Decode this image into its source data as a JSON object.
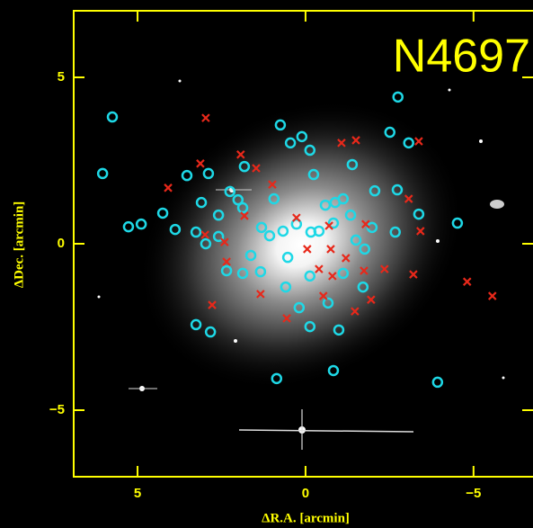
{
  "chart_data": {
    "type": "scatter",
    "title": "N4697",
    "x_label": "ΔR.A. [arcmin]",
    "y_label": "ΔDec. [arcmin]",
    "xlim": [
      6.9,
      -6.77
    ],
    "ylim": [
      -7,
      7
    ],
    "xticks": [
      5,
      0,
      {
        "value": -5,
        "label": "−5"
      }
    ],
    "yticks": [
      {
        "value": -5,
        "label": "−5"
      },
      0,
      5
    ],
    "axis_color": "#ffff00",
    "series": [
      {
        "color": "#1ed8e6",
        "marker": "circle",
        "x": [
          5.75,
          6.04,
          5.27,
          4.89,
          4.25,
          3.88,
          3.53,
          3.26,
          2.97,
          2.59,
          2.59,
          2.35,
          2.25,
          2.01,
          1.82,
          1.87,
          1.63,
          1.34,
          1.31,
          1.07,
          0.94,
          0.75,
          0.45,
          0.53,
          0.59,
          0.19,
          0.11,
          -0.13,
          -0.24,
          -0.16,
          -0.4,
          -0.59,
          -0.67,
          -0.83,
          -0.88,
          -1.12,
          -1.39,
          -1.5,
          -1.71,
          -1.76,
          -2.06,
          -2.51,
          -2.75,
          -3.07,
          -2.67,
          -2.73,
          -3.37,
          -4.52,
          -3.93,
          -0.83,
          0.86,
          3.26,
          2.83,
          -0.99,
          -0.13,
          0.67,
          0.27,
          -0.13,
          -1.34,
          1.87,
          3.1,
          2.89,
          -1.98,
          -1.12
        ],
        "y": [
          3.81,
          2.11,
          0.51,
          0.59,
          0.92,
          0.43,
          2.05,
          0.35,
          0.0,
          0.22,
          0.86,
          -0.81,
          1.57,
          1.32,
          2.32,
          -0.89,
          -0.35,
          -0.84,
          0.49,
          0.24,
          1.35,
          3.57,
          3.03,
          -0.41,
          -1.3,
          -1.92,
          3.22,
          2.81,
          2.08,
          0.35,
          0.38,
          1.16,
          -1.78,
          0.62,
          1.24,
          -0.89,
          2.38,
          0.11,
          -1.3,
          -0.16,
          1.59,
          3.35,
          4.41,
          3.03,
          0.35,
          1.62,
          0.89,
          0.62,
          -4.16,
          -3.81,
          -4.05,
          -2.43,
          -2.65,
          -2.59,
          -2.49,
          0.38,
          0.59,
          -0.97,
          0.86,
          1.08,
          1.24,
          2.11,
          0.49,
          1.35
        ]
      },
      {
        "color": "#e8281a",
        "marker": "x",
        "x": [
          2.97,
          1.47,
          1.93,
          3.13,
          4.09,
          1.82,
          0.99,
          0.27,
          -0.7,
          -1.07,
          -1.5,
          -3.37,
          -3.07,
          -3.42,
          -1.79,
          -1.2,
          -0.75,
          -0.05,
          -0.4,
          -0.8,
          -1.74,
          -2.35,
          -3.21,
          -4.81,
          -5.56,
          2.78,
          0.56,
          1.34,
          2.35,
          2.99,
          -1.47,
          -0.53,
          -1.95,
          2.41
        ],
        "y": [
          3.78,
          2.27,
          2.68,
          2.41,
          1.68,
          0.84,
          1.78,
          0.78,
          0.54,
          3.03,
          3.11,
          3.08,
          1.35,
          0.38,
          0.59,
          -0.43,
          -0.16,
          -0.16,
          -0.76,
          -0.97,
          -0.81,
          -0.76,
          -0.92,
          -1.14,
          -1.57,
          -1.84,
          -2.24,
          -1.51,
          -0.54,
          0.27,
          -2.03,
          -1.57,
          -1.68,
          0.05
        ]
      }
    ]
  }
}
